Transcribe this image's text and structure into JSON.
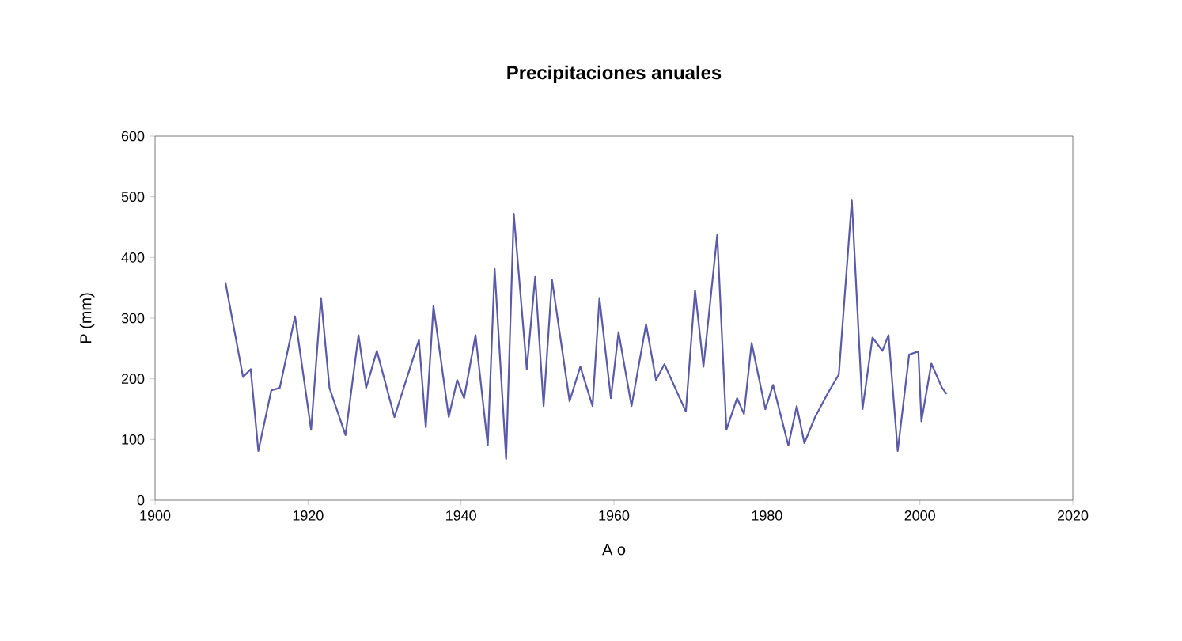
{
  "chart_data": {
    "type": "line",
    "title": "Precipitaciones anuales",
    "xlabel": "A o",
    "ylabel": "P (mm)",
    "xlim": [
      1900,
      2020
    ],
    "xticks": [
      1900,
      1920,
      1940,
      1960,
      1980,
      2000,
      2020
    ],
    "ylim": [
      0,
      600
    ],
    "yticks": [
      0,
      100,
      200,
      300,
      400,
      500,
      600
    ],
    "grid": false,
    "marker": "none",
    "line_style": "solid",
    "series": [
      {
        "color": "#5a5aa8",
        "x": [
          1909.2,
          1911.5,
          1912.5,
          1913.5,
          1915.2,
          1916.3,
          1918.3,
          1920.4,
          1921.7,
          1922.8,
          1924.9,
          1926.6,
          1927.6,
          1929.0,
          1931.3,
          1934.5,
          1935.4,
          1936.4,
          1938.4,
          1939.5,
          1940.4,
          1941.9,
          1943.5,
          1944.4,
          1945.9,
          1946.9,
          1948.6,
          1949.7,
          1950.8,
          1951.9,
          1954.2,
          1955.6,
          1957.2,
          1958.1,
          1959.6,
          1960.6,
          1962.3,
          1964.2,
          1965.5,
          1966.6,
          1969.4,
          1970.6,
          1971.7,
          1973.5,
          1974.7,
          1976.1,
          1977.0,
          1978.0,
          1979.8,
          1980.8,
          1982.8,
          1983.9,
          1984.9,
          1986.3,
          1988.0,
          1989.4,
          1991.1,
          1992.5,
          1993.8,
          1995.1,
          1995.9,
          1997.1,
          1998.6,
          1999.8,
          2000.2,
          2001.5,
          2002.9,
          2003.5
        ],
        "values": [
          359,
          203,
          216,
          81,
          181,
          185,
          303,
          116,
          333,
          185,
          107,
          272,
          185,
          246,
          137,
          264,
          120,
          320,
          137,
          198,
          168,
          272,
          90,
          381,
          68,
          472,
          216,
          368,
          155,
          363,
          163,
          220,
          155,
          333,
          168,
          277,
          155,
          290,
          198,
          224,
          146,
          346,
          220,
          437,
          116,
          168,
          142,
          259,
          150,
          190,
          90,
          155,
          94,
          137,
          177,
          207,
          494,
          150,
          268,
          246,
          272,
          81,
          240,
          245,
          130,
          225,
          185,
          175
        ]
      }
    ]
  }
}
